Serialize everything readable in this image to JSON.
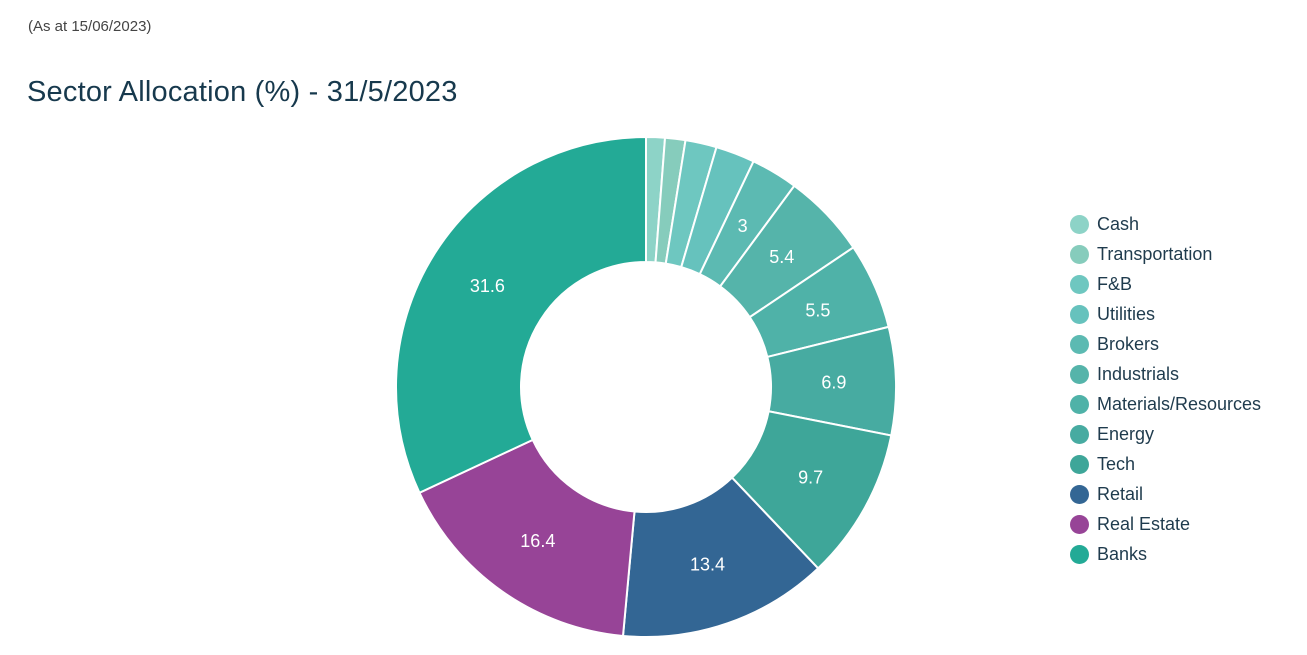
{
  "header": {
    "as_at": "(As at 15/06/2023)",
    "title": "Sector Allocation (%) - 31/5/2023"
  },
  "chart_data": {
    "type": "pie",
    "style": "donut",
    "legend_position": "right",
    "slices": [
      {
        "label": "Cash",
        "value": 1.2,
        "color": "#8dd3c7",
        "show_label": false
      },
      {
        "label": "Transportation",
        "value": 1.3,
        "color": "#86ccbc",
        "show_label": false
      },
      {
        "label": "F&B",
        "value": 2.0,
        "color": "#6ec7c0",
        "show_label": false
      },
      {
        "label": "Utilities",
        "value": 2.5,
        "color": "#66c2bd",
        "show_label": false
      },
      {
        "label": "Brokers",
        "value": 3.0,
        "color": "#5cbab2",
        "show_label": true
      },
      {
        "label": "Industrials",
        "value": 5.4,
        "color": "#55b4aa",
        "show_label": true
      },
      {
        "label": "Materials/Resources",
        "value": 5.5,
        "color": "#4fb2a8",
        "show_label": true
      },
      {
        "label": "Energy",
        "value": 6.9,
        "color": "#47aba1",
        "show_label": true
      },
      {
        "label": "Tech",
        "value": 9.7,
        "color": "#3ea699",
        "show_label": true
      },
      {
        "label": "Retail",
        "value": 13.4,
        "color": "#336694",
        "show_label": true
      },
      {
        "label": "Real Estate",
        "value": 16.4,
        "color": "#974497",
        "show_label": true
      },
      {
        "label": "Banks",
        "value": 31.6,
        "color": "#23aa96",
        "show_label": true
      }
    ]
  }
}
